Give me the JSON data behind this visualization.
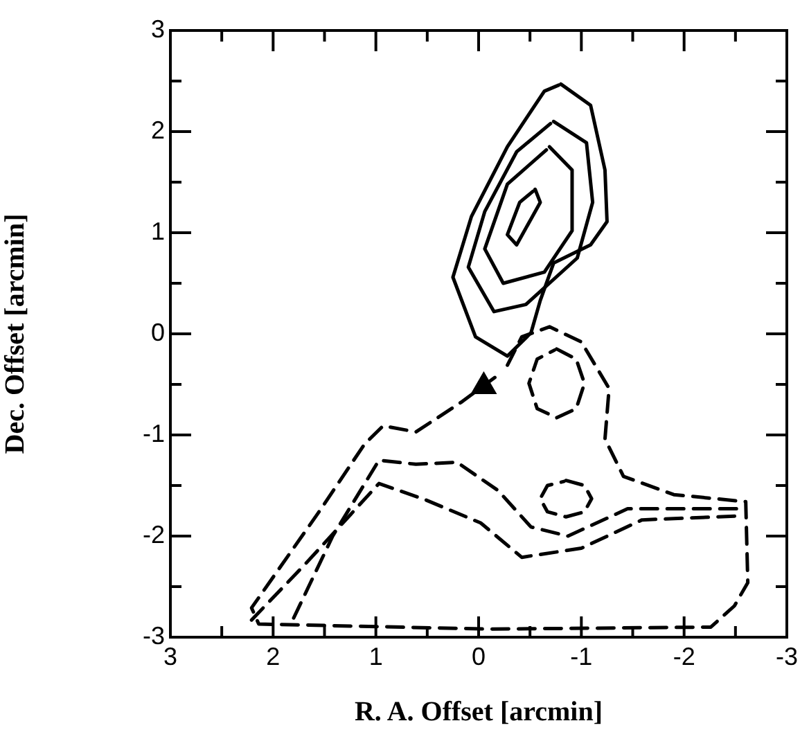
{
  "chart_data": {
    "type": "line",
    "xlabel": "R. A. Offset [arcmin]",
    "ylabel": "Dec. Offset [arcmin]",
    "xlim": [
      3,
      -3
    ],
    "ylim": [
      -3,
      3
    ],
    "xticks": [
      3,
      {
        "value": 2.5,
        "label": null
      },
      2,
      {
        "value": 1.5,
        "label": null
      },
      1,
      {
        "value": 0.5,
        "label": null
      },
      0,
      {
        "value": -0.5,
        "label": null
      },
      -1,
      {
        "value": -1.5,
        "label": null
      },
      -2,
      {
        "value": -2.5,
        "label": null
      },
      -3
    ],
    "yticks": [
      -3,
      {
        "value": -2.5,
        "label": null
      },
      -2,
      {
        "value": -1.5,
        "label": null
      },
      -1,
      {
        "value": -0.5,
        "label": null
      },
      0,
      {
        "value": 0.5,
        "label": null
      },
      1,
      {
        "value": 1.5,
        "label": null
      },
      2,
      {
        "value": 2.5,
        "label": null
      },
      3
    ],
    "series": [
      {
        "color": "#000000",
        "line_style": "solid",
        "x": [
          -0.8,
          -1.09,
          -1.23,
          -1.25,
          -1.09,
          -0.73,
          -0.6,
          -0.51,
          -0.28,
          0.03,
          0.25,
          0.07,
          -0.28,
          -0.64,
          -0.78
        ],
        "values": [
          2.47,
          2.26,
          1.62,
          1.11,
          0.88,
          0.7,
          0.33,
          0.01,
          -0.22,
          -0.03,
          0.56,
          1.16,
          1.85,
          2.4,
          2.46
        ]
      },
      {
        "color": "#000000",
        "line_style": "solid",
        "x": [
          -0.73,
          -1.05,
          -1.11,
          -0.96,
          -0.46,
          -0.15,
          0.1,
          -0.06,
          -0.37,
          -0.7
        ],
        "values": [
          2.1,
          1.89,
          1.3,
          0.75,
          0.29,
          0.22,
          0.66,
          1.21,
          1.8,
          2.08
        ]
      },
      {
        "color": "#000000",
        "line_style": "solid",
        "x": [
          -0.69,
          -0.91,
          -0.91,
          -0.64,
          -0.24,
          -0.06,
          -0.28,
          -0.66
        ],
        "values": [
          1.85,
          1.62,
          1.02,
          0.61,
          0.5,
          0.84,
          1.48,
          1.82
        ]
      },
      {
        "color": "#000000",
        "line_style": "solid",
        "x": [
          -0.55,
          -0.6,
          -0.37,
          -0.28,
          -0.4,
          -0.53
        ],
        "values": [
          1.43,
          1.3,
          0.88,
          0.98,
          1.3,
          1.41
        ]
      },
      {
        "color": "#000000",
        "line_style": "dashed",
        "x": [
          -0.28,
          -0.42,
          -0.69,
          -1.0,
          -1.27,
          -1.23,
          -1.41,
          -1.9,
          -2.6,
          -2.62,
          -2.49,
          -2.26,
          -0.11,
          2.14,
          2.21,
          1.56,
          1.11,
          0.93,
          0.61,
          0.16,
          -0.2
        ],
        "values": [
          -0.31,
          -0.03,
          0.07,
          -0.08,
          -0.54,
          -1.04,
          -1.41,
          -1.59,
          -1.66,
          -2.46,
          -2.69,
          -2.9,
          -2.92,
          -2.87,
          -2.71,
          -1.77,
          -1.09,
          -0.91,
          -0.97,
          -0.67,
          -0.4
        ]
      },
      {
        "color": "#000000",
        "line_style": "dashed",
        "x": [
          1.8,
          1.42,
          0.97,
          0.61,
          0.21,
          -0.19,
          -0.51,
          -0.87,
          -1.45,
          -2.57
        ],
        "values": [
          -2.81,
          -2.0,
          -1.25,
          -1.29,
          -1.27,
          -1.55,
          -1.91,
          -2.0,
          -1.73,
          -1.73
        ]
      },
      {
        "color": "#000000",
        "line_style": "dashed",
        "x": [
          2.21,
          1.69,
          0.97,
          0.52,
          -0.02,
          -0.42,
          -1.0,
          -1.59,
          -2.57
        ],
        "values": [
          -2.83,
          -2.28,
          -1.48,
          -1.64,
          -1.87,
          -2.21,
          -2.12,
          -1.84,
          -1.8
        ]
      },
      {
        "color": "#000000",
        "line_style": "dashed",
        "x": [
          -0.76,
          -0.95,
          -1.03,
          -0.95,
          -0.76,
          -0.57,
          -0.49,
          -0.57,
          -0.74
        ],
        "values": [
          -0.15,
          -0.25,
          -0.49,
          -0.74,
          -0.83,
          -0.74,
          -0.49,
          -0.25,
          -0.16
        ]
      },
      {
        "color": "#000000",
        "line_style": "dashed",
        "x": [
          -0.85,
          -1.03,
          -1.1,
          -1.03,
          -0.85,
          -0.67,
          -0.6,
          -0.67,
          -0.83
        ],
        "values": [
          -1.45,
          -1.5,
          -1.63,
          -1.76,
          -1.81,
          -1.76,
          -1.63,
          -1.5,
          -1.46
        ]
      },
      {
        "type": "scatter",
        "color": "#000000",
        "marker": "triangle",
        "x": [
          -0.05
        ],
        "values": [
          -0.52
        ]
      }
    ]
  }
}
